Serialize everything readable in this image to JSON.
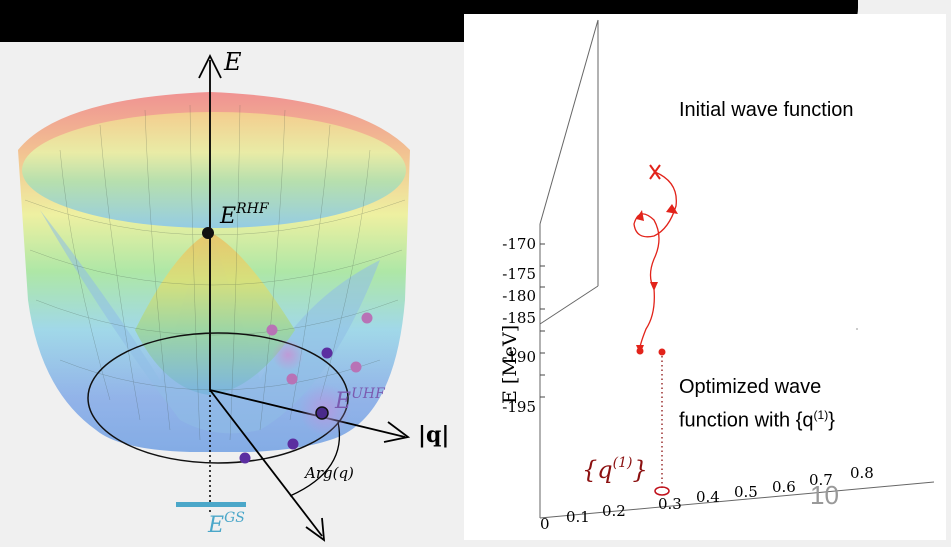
{
  "left": {
    "axis_e": "E",
    "axis_q": "|q|",
    "e_rhf": "E",
    "e_rhf_sup": "RHF",
    "e_uhf": "E",
    "e_uhf_sup": "UHF",
    "e_gs": "E",
    "e_gs_sup": "GS",
    "arg_label": "Arg(q)",
    "colors": {
      "gs_bar": "#4ba7c9",
      "uhf_point": "#5b2ea0",
      "minor_point": "#b873b6",
      "rhf_point": "#111111"
    }
  },
  "right": {
    "initial_label": "Initial wave function",
    "optimized_label_1": "Optimized wave",
    "optimized_label_2": "function with {q",
    "optimized_label_sup": "(1)",
    "optimized_label_end": "}",
    "q_label": "{q",
    "q_label_sup": "(1)",
    "q_label_end": "}",
    "ylabel": "E [MeV]",
    "y_ticks": [
      "-170",
      "-175",
      "-180",
      "-185",
      "-190",
      "-195"
    ],
    "x_ticks": [
      "0",
      "0.1",
      "0.2",
      "0.3",
      "0.4",
      "0.5",
      "0.6",
      "0.7",
      "0.8"
    ],
    "page_number": "10",
    "colors": {
      "path": "#e2231a",
      "q_label": "#8b1010"
    }
  }
}
